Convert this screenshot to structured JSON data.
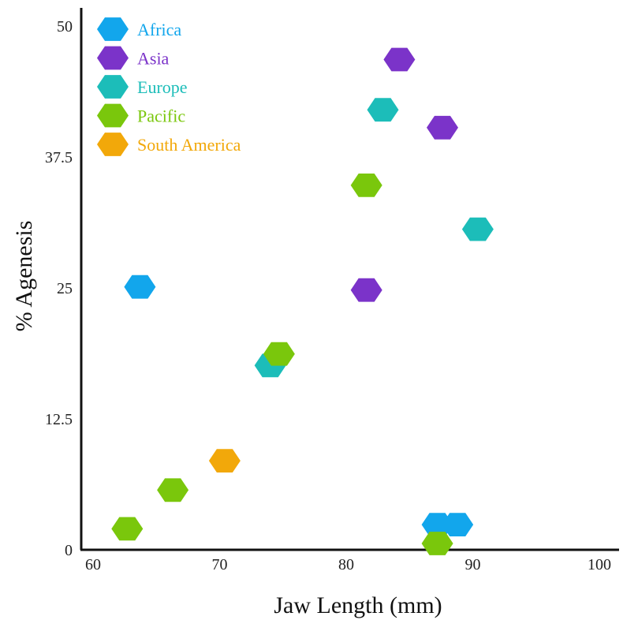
{
  "chart_data": {
    "type": "scatter",
    "title": "",
    "xlabel": "Jaw Length (mm)",
    "ylabel": "% Agenesis",
    "xlim": [
      60,
      100
    ],
    "ylim": [
      0,
      50
    ],
    "x_ticks": [
      "60",
      "70",
      "80",
      "90",
      "100"
    ],
    "y_ticks": [
      "0",
      "12.5",
      "25",
      "37.5",
      "50"
    ],
    "x_tick_values": [
      60,
      70,
      80,
      90,
      100
    ],
    "y_tick_values": [
      0,
      12.5,
      25,
      37.5,
      50
    ],
    "grid": false,
    "legend_position": "top-left",
    "marker": "hexagon",
    "series": [
      {
        "name": "Africa",
        "color": "#12a6ec",
        "points": [
          {
            "x": 63.7,
            "y": 25.1
          },
          {
            "x": 87.2,
            "y": 2.4
          },
          {
            "x": 88.8,
            "y": 2.4
          }
        ]
      },
      {
        "name": "Asia",
        "color": "#7b33c9",
        "points": [
          {
            "x": 84.2,
            "y": 46.8
          },
          {
            "x": 87.6,
            "y": 40.3
          },
          {
            "x": 81.6,
            "y": 24.8
          }
        ]
      },
      {
        "name": "Europe",
        "color": "#1cbdb9",
        "points": [
          {
            "x": 82.9,
            "y": 42.0
          },
          {
            "x": 90.4,
            "y": 30.6
          },
          {
            "x": 74.0,
            "y": 17.6
          }
        ]
      },
      {
        "name": "Pacific",
        "color": "#7ac70c",
        "points": [
          {
            "x": 81.6,
            "y": 34.8
          },
          {
            "x": 74.7,
            "y": 18.7
          },
          {
            "x": 66.3,
            "y": 5.7
          },
          {
            "x": 62.7,
            "y": 2.0
          },
          {
            "x": 87.2,
            "y": 0.6
          }
        ]
      },
      {
        "name": "South America",
        "color": "#f2a80a",
        "points": [
          {
            "x": 70.4,
            "y": 8.5
          }
        ]
      }
    ]
  }
}
